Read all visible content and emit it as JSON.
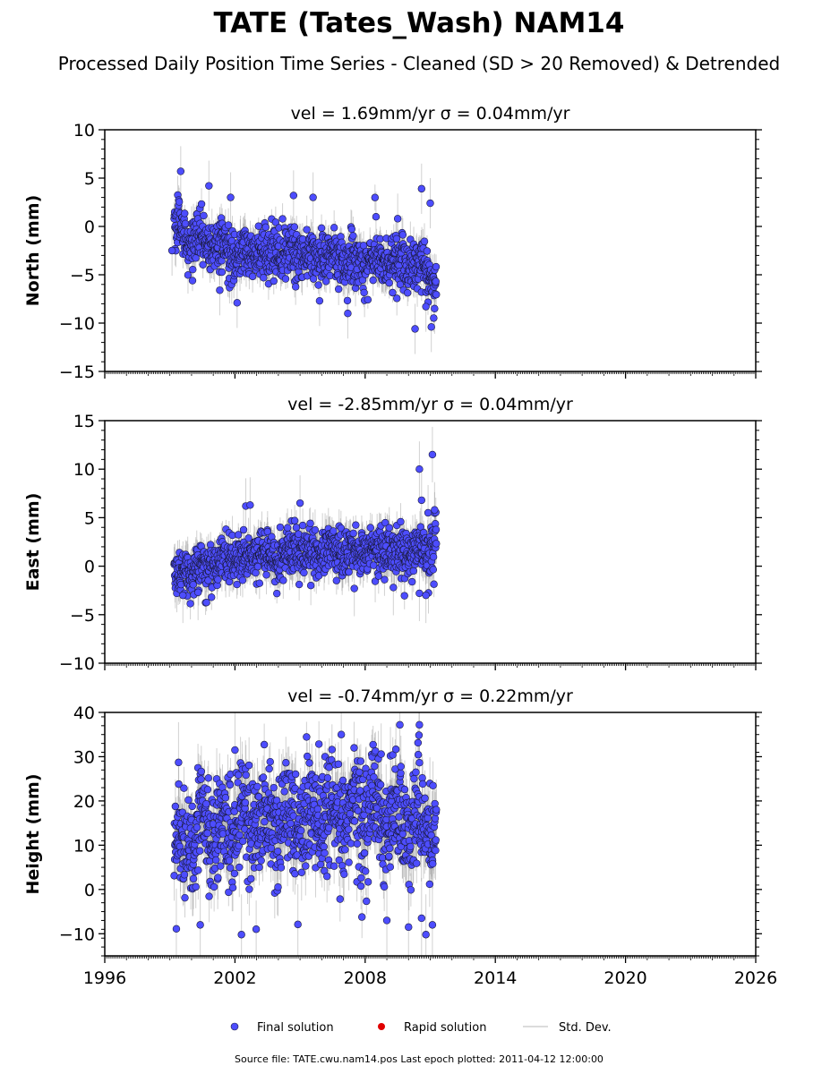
{
  "title": "TATE (Tates_Wash) NAM14",
  "subtitle": "Processed Daily Position Time Series - Cleaned (SD > 20 Removed) & Detrended",
  "footer": "Source file: TATE.cwu.nam14.pos  Last epoch plotted: 2011-04-12 12:00:00",
  "legend": {
    "final": "Final solution",
    "rapid": "Rapid solution",
    "std": "Std. Dev.",
    "placement": "bottom-center"
  },
  "colors": {
    "final_fill": "#4d4dff",
    "final_edge": "#1a1a3a",
    "rapid_fill": "#e00000",
    "std": "#9a9a9a"
  },
  "chart_data": [
    {
      "type": "scatter",
      "panel_title": "vel = 1.69mm/yr   σ = 0.04mm/yr",
      "ylabel": "North (mm)",
      "xlim": [
        1996,
        2026
      ],
      "ylim": [
        -15,
        10
      ],
      "xticks": [
        "1996",
        "2002",
        "2008",
        "2014",
        "2020",
        "2026"
      ],
      "yticks": [
        "−15",
        "−10",
        "−5",
        "0",
        "5",
        "10"
      ],
      "ytick_values": [
        -15,
        -10,
        -5,
        0,
        5,
        10
      ],
      "series": [
        {
          "name": "Final solution",
          "x_start": 1999.2,
          "x_end": 2011.28,
          "trend": [
            [
              1999.2,
              0.5
            ],
            [
              1999.6,
              -1.0
            ],
            [
              2000.5,
              -1.8
            ],
            [
              2002.0,
              -2.8
            ],
            [
              2005.0,
              -2.8
            ],
            [
              2008.0,
              -3.5
            ],
            [
              2010.5,
              -4.0
            ],
            [
              2011.28,
              -5.5
            ]
          ],
          "noise_sd": 1.3,
          "sigma_range": [
            0.8,
            2.0
          ],
          "outliers": [
            [
              1999.5,
              5.7
            ],
            [
              2000.8,
              4.2
            ],
            [
              2001.8,
              3.0
            ],
            [
              2004.7,
              3.2
            ],
            [
              2005.6,
              3.0
            ],
            [
              2007.2,
              -9.0
            ],
            [
              2001.3,
              -6.6
            ],
            [
              2002.1,
              -7.9
            ],
            [
              2005.9,
              -7.7
            ],
            [
              2010.3,
              -10.6
            ],
            [
              2010.6,
              3.9
            ],
            [
              2011.0,
              2.4
            ],
            [
              2011.05,
              -10.4
            ],
            [
              2011.2,
              -8.5
            ],
            [
              2010.8,
              -8.3
            ],
            [
              2008.5,
              1.0
            ],
            [
              2009.5,
              0.8
            ],
            [
              1999.1,
              -2.5
            ]
          ]
        }
      ]
    },
    {
      "type": "scatter",
      "panel_title": "vel = -2.85mm/yr   σ = 0.04mm/yr",
      "ylabel": "East (mm)",
      "xlim": [
        1996,
        2026
      ],
      "ylim": [
        -10,
        15
      ],
      "xticks": [
        "1996",
        "2002",
        "2008",
        "2014",
        "2020",
        "2026"
      ],
      "yticks": [
        "−10",
        "−5",
        "0",
        "5",
        "10",
        "15"
      ],
      "ytick_values": [
        -10,
        -5,
        0,
        5,
        10,
        15
      ],
      "series": [
        {
          "name": "Final solution",
          "x_start": 1999.2,
          "x_end": 2011.28,
          "trend": [
            [
              1999.2,
              -1.0
            ],
            [
              2000.5,
              0.0
            ],
            [
              2002.0,
              0.8
            ],
            [
              2005.0,
              1.5
            ],
            [
              2008.0,
              1.3
            ],
            [
              2010.5,
              1.5
            ],
            [
              2011.28,
              2.5
            ]
          ],
          "noise_sd": 1.2,
          "sigma_range": [
            0.8,
            2.2
          ],
          "outliers": [
            [
              2002.5,
              6.2
            ],
            [
              2002.7,
              6.3
            ],
            [
              2005.0,
              6.5
            ],
            [
              2010.5,
              10.0
            ],
            [
              2010.6,
              6.8
            ],
            [
              2011.1,
              11.5
            ],
            [
              2010.9,
              5.5
            ],
            [
              2011.2,
              5.8
            ],
            [
              2010.5,
              -2.8
            ],
            [
              2010.8,
              -3.0
            ],
            [
              1999.6,
              -3.0
            ],
            [
              2000.3,
              -2.7
            ],
            [
              2007.5,
              -2.3
            ],
            [
              2009.3,
              -2.2
            ]
          ]
        }
      ]
    },
    {
      "type": "scatter",
      "panel_title": "vel = -0.74mm/yr   σ = 0.22mm/yr",
      "ylabel": "Height (mm)",
      "xlim": [
        1996,
        2026
      ],
      "ylim": [
        -15,
        40
      ],
      "xticks": [
        "1996",
        "2002",
        "2008",
        "2014",
        "2020",
        "2026"
      ],
      "yticks": [
        "−10",
        "0",
        "10",
        "20",
        "30",
        "40"
      ],
      "ytick_values": [
        -10,
        0,
        10,
        20,
        30,
        40
      ],
      "series": [
        {
          "name": "Final solution",
          "x_start": 1999.2,
          "x_end": 2011.28,
          "trend": [
            [
              1999.2,
              10.0
            ],
            [
              2000.5,
              13.0
            ],
            [
              2002.0,
              15.0
            ],
            [
              2005.0,
              15.5
            ],
            [
              2008.0,
              17.0
            ],
            [
              2010.5,
              16.0
            ],
            [
              2011.28,
              12.0
            ]
          ],
          "noise_sd": 6.0,
          "sigma_range": [
            3.0,
            7.0
          ],
          "outliers": [
            [
              1999.4,
              28.7
            ],
            [
              2002.0,
              31.5
            ],
            [
              2006.9,
              35.0
            ],
            [
              2009.6,
              37.2
            ],
            [
              2010.5,
              37.2
            ],
            [
              2002.3,
              -10.2
            ],
            [
              2004.9,
              -7.9
            ],
            [
              2010.0,
              -8.5
            ],
            [
              2010.8,
              -10.2
            ],
            [
              2011.1,
              -8.0
            ],
            [
              1999.3,
              -8.9
            ],
            [
              2000.4,
              -8.0
            ],
            [
              2009.0,
              -7.0
            ],
            [
              2010.6,
              -6.5
            ]
          ]
        }
      ]
    }
  ]
}
